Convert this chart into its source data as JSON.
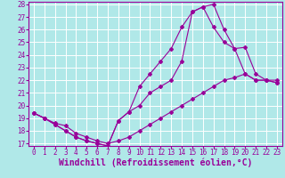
{
  "bg_color": "#b0e8e8",
  "line_color": "#990099",
  "grid_color": "#ffffff",
  "xlabel": "Windchill (Refroidissement éolien,°C)",
  "xlabel_fontsize": 7,
  "xtick_fontsize": 5.5,
  "ytick_fontsize": 5.5,
  "ylim": [
    17,
    28
  ],
  "xlim": [
    -0.5,
    23.5
  ],
  "yticks": [
    17,
    18,
    19,
    20,
    21,
    22,
    23,
    24,
    25,
    26,
    27,
    28
  ],
  "xticks": [
    0,
    1,
    2,
    3,
    4,
    5,
    6,
    7,
    8,
    9,
    10,
    11,
    12,
    13,
    14,
    15,
    16,
    17,
    18,
    19,
    20,
    21,
    22,
    23
  ],
  "line1_x": [
    0,
    1,
    2,
    3,
    4,
    5,
    6,
    7,
    8,
    9,
    10,
    11,
    12,
    13,
    14,
    15,
    16,
    17,
    18,
    19,
    20,
    21,
    22,
    23
  ],
  "line1_y": [
    19.4,
    19.0,
    18.6,
    18.4,
    17.8,
    17.5,
    17.2,
    17.0,
    17.2,
    17.5,
    18.0,
    18.5,
    19.0,
    19.5,
    20.0,
    20.5,
    21.0,
    21.5,
    22.0,
    22.2,
    22.5,
    22.0,
    22.0,
    22.0
  ],
  "line2_x": [
    0,
    1,
    2,
    3,
    4,
    5,
    6,
    7,
    8,
    9,
    10,
    11,
    12,
    13,
    14,
    15,
    16,
    17,
    18,
    19,
    20,
    21,
    22,
    23
  ],
  "line2_y": [
    19.4,
    19.0,
    18.5,
    18.0,
    17.5,
    17.2,
    17.0,
    16.8,
    18.8,
    19.5,
    21.5,
    22.5,
    23.5,
    24.5,
    26.2,
    27.4,
    27.8,
    26.2,
    25.0,
    24.5,
    24.6,
    22.5,
    22.0,
    21.8
  ],
  "line3_x": [
    0,
    1,
    2,
    3,
    4,
    5,
    6,
    7,
    8,
    9,
    10,
    11,
    12,
    13,
    14,
    15,
    16,
    17,
    18,
    19,
    20,
    21,
    22,
    23
  ],
  "line3_y": [
    19.4,
    19.0,
    18.5,
    18.0,
    17.5,
    17.2,
    17.0,
    16.8,
    18.8,
    19.5,
    20.0,
    21.0,
    21.5,
    22.0,
    23.5,
    27.4,
    27.8,
    28.0,
    26.0,
    24.5,
    22.5,
    22.0,
    22.0,
    21.8
  ]
}
